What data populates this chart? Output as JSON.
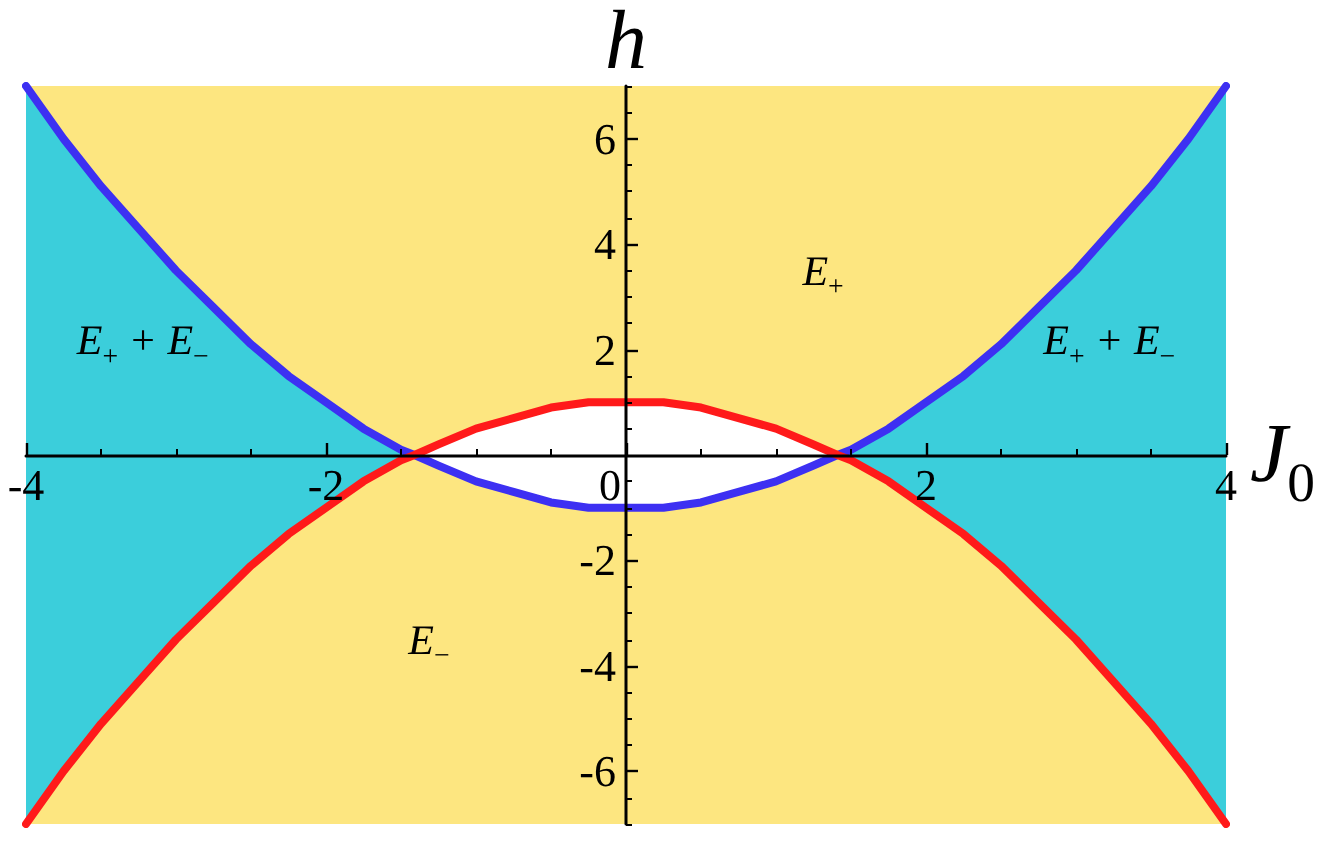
{
  "chart_data": {
    "type": "line",
    "xlabel": "J$_{0}$",
    "ylabel": "h",
    "xlim": [
      -4,
      4
    ],
    "ylim": [
      -7,
      7
    ],
    "xticks": [
      -4,
      {
        "value": -3.5,
        "label": null
      },
      {
        "value": -3,
        "label": null
      },
      {
        "value": -2.5,
        "label": null
      },
      -2,
      {
        "value": -1.5,
        "label": null
      },
      {
        "value": -1,
        "label": null
      },
      {
        "value": -0.5,
        "label": null
      },
      0,
      {
        "value": 0.5,
        "label": null
      },
      {
        "value": 1,
        "label": null
      },
      {
        "value": 1.5,
        "label": null
      },
      2,
      {
        "value": 2.5,
        "label": null
      },
      {
        "value": 3,
        "label": null
      },
      {
        "value": 3.5,
        "label": null
      },
      4
    ],
    "yticks": [
      {
        "value": -7,
        "label": null
      },
      {
        "value": -6.5,
        "label": null
      },
      -6,
      {
        "value": -5.5,
        "label": null
      },
      {
        "value": -5,
        "label": null
      },
      {
        "value": -4.5,
        "label": null
      },
      -4,
      {
        "value": -3.5,
        "label": null
      },
      {
        "value": -3,
        "label": null
      },
      {
        "value": -2.5,
        "label": null
      },
      -2,
      {
        "value": -1.5,
        "label": null
      },
      {
        "value": -1,
        "label": null
      },
      {
        "value": -0.5,
        "label": null
      },
      {
        "value": 0.5,
        "label": null
      },
      {
        "value": 1,
        "label": null
      },
      {
        "value": 1.5,
        "label": null
      },
      2,
      {
        "value": 2.5,
        "label": null
      },
      {
        "value": 3,
        "label": null
      },
      {
        "value": 3.5,
        "label": null
      },
      4,
      {
        "value": 4.5,
        "label": null
      },
      {
        "value": 5,
        "label": null
      },
      {
        "value": 5.5,
        "label": null
      },
      6,
      {
        "value": 6.5,
        "label": null
      },
      {
        "value": 7,
        "label": null
      }
    ],
    "x": [
      -4,
      -3.75,
      -3.5,
      -3.25,
      -3,
      -2.75,
      -2.5,
      -2.25,
      -2,
      -1.75,
      -1.5,
      -1.41,
      -1.25,
      -1,
      -0.75,
      -0.5,
      -0.25,
      0,
      0.25,
      0.5,
      0.75,
      1,
      1.25,
      1.41,
      1.5,
      1.75,
      2,
      2.25,
      2.5,
      2.75,
      3,
      3.25,
      3.5,
      3.75,
      4
    ],
    "series": [
      {
        "type": "area",
        "name": "E$_{+}$",
        "color": "#fde680",
        "values": [
          7,
          7,
          7,
          7,
          7,
          7,
          7,
          7,
          7,
          7,
          7,
          7,
          7,
          7,
          7,
          7,
          7,
          7,
          7,
          7,
          7,
          7,
          7,
          7,
          7,
          7,
          7,
          7,
          7,
          7,
          7,
          7,
          7,
          7,
          7
        ]
      },
      {
        "type": "area",
        "name": "E$_{−}$",
        "color": "#fde680",
        "values": [
          -7,
          -7,
          -7,
          -7,
          -7,
          -7,
          -7,
          -7,
          -7,
          -7,
          -7,
          -7,
          -7,
          -7,
          -7,
          -7,
          -7,
          -7,
          -7,
          -7,
          -7,
          -7,
          -7,
          -7,
          -7,
          -7,
          -7,
          -7,
          -7,
          -7,
          -7,
          -7,
          -7,
          -7,
          -7
        ]
      },
      {
        "type": "area",
        "name": "E$_{+}$ + E$_{−}$",
        "color": "#3bcedb",
        "values": [
          7,
          6,
          5.1,
          4.3,
          3.5,
          2.8,
          2.1,
          1.5,
          1,
          0.5,
          0.1,
          0,
          null,
          null,
          null,
          null,
          null,
          null,
          null,
          null,
          null,
          null,
          null,
          0,
          0.1,
          0.5,
          1,
          1.5,
          2.1,
          2.8,
          3.5,
          4.3,
          5.1,
          6,
          7
        ]
      },
      {
        "type": "area",
        "color": "#3bcedb",
        "values": [
          -7,
          -6,
          -5.1,
          -4.3,
          -3.5,
          -2.8,
          -2.1,
          -1.5,
          -1,
          -0.5,
          -0.1,
          0,
          null,
          null,
          null,
          null,
          null,
          null,
          null,
          null,
          null,
          null,
          null,
          0,
          -0.1,
          -0.5,
          -1,
          -1.5,
          -2.1,
          -2.8,
          -3.5,
          -4.3,
          -5.1,
          -6,
          -7
        ]
      },
      {
        "type": "area",
        "color": "#ffffff",
        "values": [
          null,
          null,
          null,
          null,
          null,
          null,
          null,
          null,
          null,
          null,
          null,
          0,
          0.2,
          0.5,
          0.7,
          0.9,
          1,
          1,
          1,
          0.9,
          0.7,
          0.5,
          0.2,
          0,
          null,
          null,
          null,
          null,
          null,
          null,
          null,
          null,
          null,
          null,
          null
        ]
      },
      {
        "type": "area",
        "color": "#ffffff",
        "values": [
          null,
          null,
          null,
          null,
          null,
          null,
          null,
          null,
          null,
          null,
          null,
          0,
          -0.2,
          -0.5,
          -0.7,
          -0.9,
          -1,
          -1,
          -1,
          -0.9,
          -0.7,
          -0.5,
          -0.2,
          0,
          null,
          null,
          null,
          null,
          null,
          null,
          null,
          null,
          null,
          null,
          null
        ]
      },
      {
        "color": "#3d30f2",
        "values": [
          7,
          6,
          5.1,
          4.3,
          3.5,
          2.8,
          2.1,
          1.5,
          1,
          0.5,
          0.1,
          0,
          -0.2,
          -0.5,
          -0.7,
          -0.9,
          -1,
          -1,
          -1,
          -0.9,
          -0.7,
          -0.5,
          -0.2,
          0,
          0.1,
          0.5,
          1,
          1.5,
          2.1,
          2.8,
          3.5,
          4.3,
          5.1,
          6,
          7
        ]
      },
      {
        "color": "#ff1a1a",
        "values": [
          -7,
          -6,
          -5.1,
          -4.3,
          -3.5,
          -2.8,
          -2.1,
          -1.5,
          -1,
          -0.5,
          -0.1,
          0,
          0.2,
          0.5,
          0.7,
          0.9,
          1,
          1,
          1,
          0.9,
          0.7,
          0.5,
          0.2,
          0,
          -0.1,
          -0.5,
          -1,
          -1.5,
          -2.1,
          -2.8,
          -3.5,
          -4.3,
          -5.1,
          -6,
          -7
        ]
      }
    ]
  }
}
